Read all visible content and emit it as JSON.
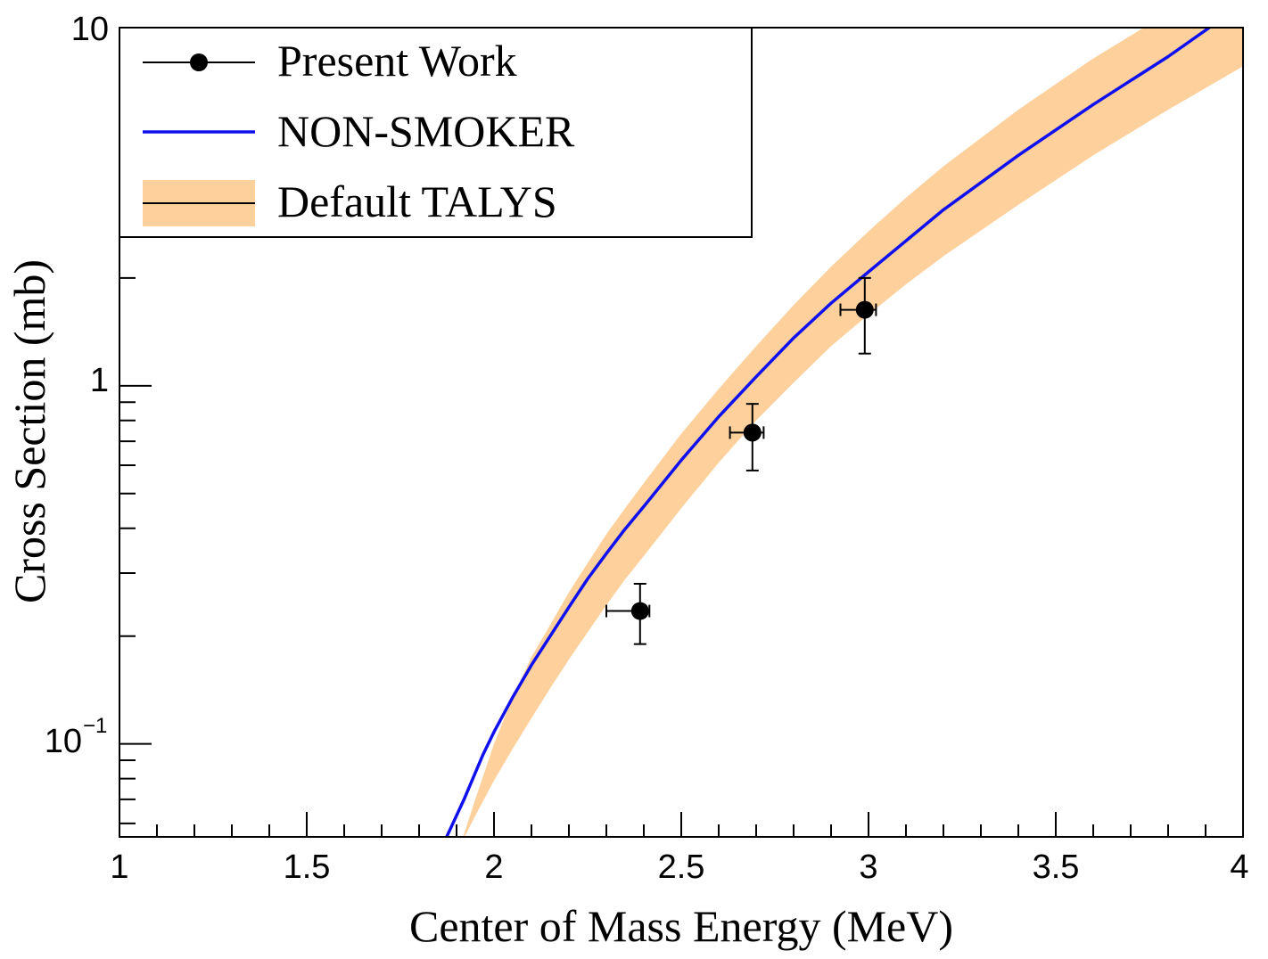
{
  "chart_data": {
    "type": "scatter",
    "title": "",
    "xlabel": "Center of Mass Energy (MeV)",
    "ylabel": "Cross Section (mb)",
    "xlim": [
      1,
      4
    ],
    "ylim": [
      0.055,
      10
    ],
    "yscale": "log",
    "grid": false,
    "legend_position": "top-left",
    "x_ticks": [
      {
        "value": 1,
        "label": "1"
      },
      {
        "value": 1.5,
        "label": "1.5"
      },
      {
        "value": 2,
        "label": "2"
      },
      {
        "value": 2.5,
        "label": "2.5"
      },
      {
        "value": 3,
        "label": "3"
      },
      {
        "value": 3.5,
        "label": "3.5"
      },
      {
        "value": 4,
        "label": "4"
      }
    ],
    "y_ticks": [
      {
        "value": 0.1,
        "base": "10",
        "exponent": "−1"
      },
      {
        "value": 1,
        "label": "1"
      },
      {
        "value": 10,
        "label": "10"
      }
    ],
    "legend": {
      "present": "Present Work",
      "nonsmoker": "NON-SMOKER",
      "talys": "Default TALYS"
    },
    "series": [
      {
        "name": "Present Work",
        "kind": "points",
        "color": "#000000",
        "points": [
          {
            "x": 2.39,
            "y": 0.235,
            "xerr_lo": 0.09,
            "xerr_hi": 0.025,
            "yerr_lo": 0.045,
            "yerr_hi": 0.045
          },
          {
            "x": 2.69,
            "y": 0.74,
            "xerr_lo": 0.06,
            "xerr_hi": 0.03,
            "yerr_lo": 0.16,
            "yerr_hi": 0.15
          },
          {
            "x": 2.99,
            "y": 1.63,
            "xerr_lo": 0.065,
            "xerr_hi": 0.03,
            "yerr_lo": 0.4,
            "yerr_hi": 0.37
          }
        ]
      },
      {
        "name": "NON-SMOKER",
        "kind": "line",
        "color": "#1010ee",
        "x": [
          1.87,
          1.92,
          1.97,
          2.0,
          2.05,
          2.1,
          2.15,
          2.2,
          2.25,
          2.3,
          2.35,
          2.4,
          2.5,
          2.6,
          2.7,
          2.8,
          2.9,
          3.0,
          3.2,
          3.4,
          3.6,
          3.8,
          3.91
        ],
        "y": [
          0.054,
          0.07,
          0.093,
          0.108,
          0.135,
          0.166,
          0.2,
          0.241,
          0.289,
          0.34,
          0.398,
          0.46,
          0.62,
          0.82,
          1.06,
          1.36,
          1.7,
          2.08,
          3.1,
          4.4,
          6.1,
          8.3,
          10.0
        ]
      },
      {
        "name": "Default TALYS",
        "kind": "band",
        "color": "#fdd09c",
        "x": [
          1.91,
          1.95,
          2.0,
          2.05,
          2.1,
          2.15,
          2.2,
          2.25,
          2.3,
          2.35,
          2.4,
          2.5,
          2.6,
          2.7,
          2.8,
          2.9,
          3.0,
          3.1,
          3.2,
          3.4,
          3.6,
          3.8,
          4.0
        ],
        "lower": [
          0.052,
          0.063,
          0.079,
          0.097,
          0.118,
          0.143,
          0.172,
          0.205,
          0.244,
          0.288,
          0.335,
          0.455,
          0.61,
          0.8,
          1.02,
          1.29,
          1.58,
          1.92,
          2.3,
          3.2,
          4.4,
          5.9,
          7.8
        ],
        "upper": [
          0.052,
          0.07,
          0.1,
          0.135,
          0.175,
          0.215,
          0.265,
          0.32,
          0.385,
          0.455,
          0.535,
          0.735,
          0.98,
          1.29,
          1.68,
          2.15,
          2.7,
          3.35,
          4.1,
          5.9,
          8.2,
          11.0,
          14.5
        ]
      }
    ]
  }
}
